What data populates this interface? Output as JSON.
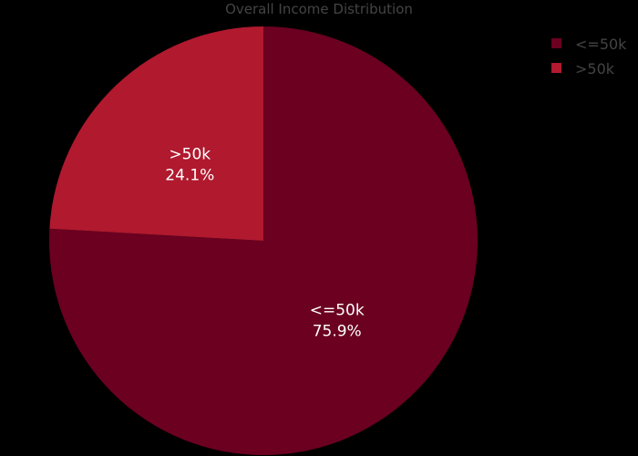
{
  "chart_data": {
    "type": "pie",
    "title": "Overall Income Distribution",
    "slices": [
      {
        "label": "<=50k",
        "value": 75.9,
        "percent_label": "75.9%",
        "color": "#6b0020"
      },
      {
        "label": ">50k",
        "value": 24.1,
        "percent_label": "24.1%",
        "color": "#b0192e"
      }
    ],
    "legend": {
      "position": "top-right",
      "entries": [
        "<=50k",
        ">50k"
      ]
    },
    "background_color": "#000000",
    "text_color": "#444444"
  }
}
